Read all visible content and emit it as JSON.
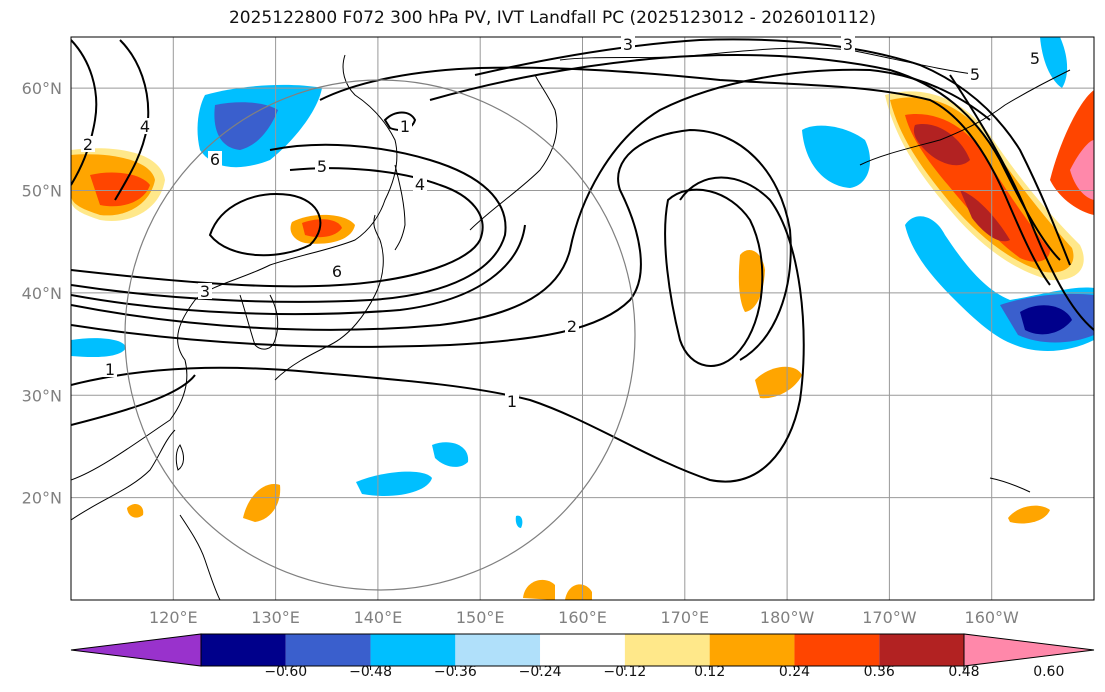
{
  "chart_data": {
    "type": "contour-map",
    "title": "2025122800 F072 300 hPa PV, IVT Landfall PC (2025123012 - 2026010112)",
    "lat_labels": [
      "60°N",
      "50°N",
      "40°N",
      "30°N",
      "20°N"
    ],
    "lat_values": [
      60,
      50,
      40,
      30,
      20
    ],
    "lon_labels": [
      "120°E",
      "130°E",
      "140°E",
      "150°E",
      "160°E",
      "170°E",
      "180°W",
      "170°W",
      "160°W"
    ],
    "lon_values": [
      120,
      130,
      140,
      150,
      160,
      170,
      180,
      190,
      200
    ],
    "map_extent": {
      "lon": [
        110,
        210
      ],
      "lat": [
        10,
        65
      ]
    },
    "contour_labels": [
      "1",
      "1",
      "1",
      "2",
      "2",
      "3",
      "3",
      "3",
      "4",
      "4",
      "5",
      "5",
      "5",
      "6",
      "6"
    ],
    "colorbar": {
      "ticks": [
        "−0.60",
        "−0.48",
        "−0.36",
        "−0.24",
        "−0.12",
        "0.12",
        "0.24",
        "0.36",
        "0.48",
        "0.60"
      ],
      "colors": [
        "#9932cc",
        "#00008b",
        "#3a5fcd",
        "#00bfff",
        "#b0e0fa",
        "#ffffff",
        "#ffe88a",
        "#ffa500",
        "#ff4500",
        "#b22222",
        "#ff88aa"
      ]
    }
  }
}
